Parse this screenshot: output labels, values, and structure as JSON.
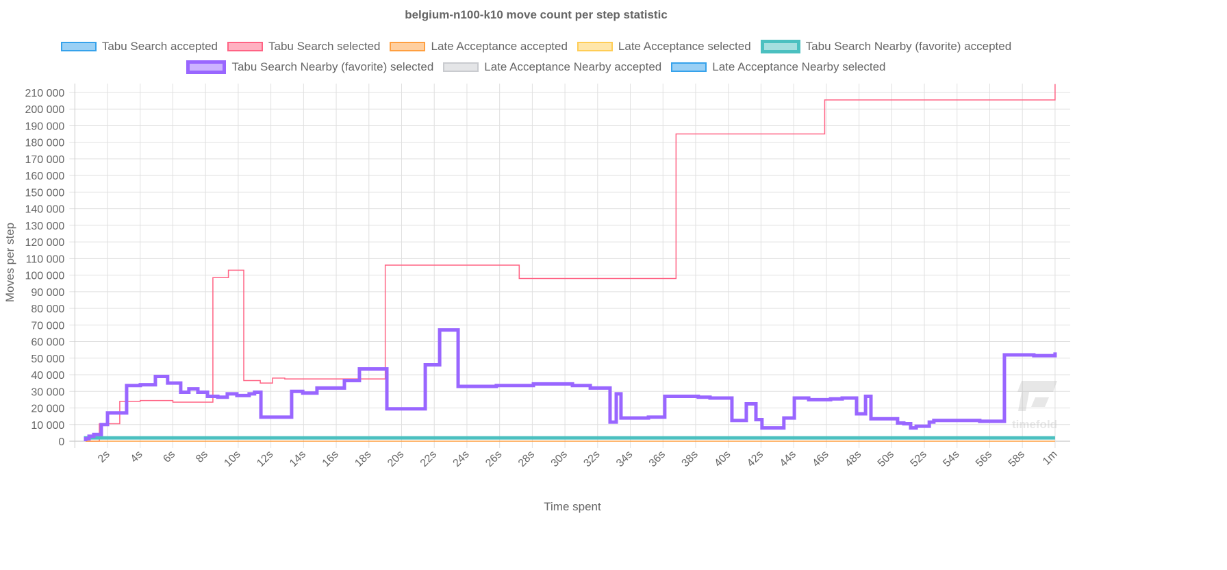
{
  "chart_data": {
    "type": "line",
    "title": "belgium-n100-k10 move count per step statistic",
    "xlabel": "Time spent",
    "ylabel": "Moves per step",
    "xlim": [
      0,
      61
    ],
    "ylim": [
      0,
      215000
    ],
    "stepped": true,
    "grid": true,
    "legend_position": "top",
    "x_ticks": [
      {
        "value": 2,
        "label": "2s"
      },
      {
        "value": 4,
        "label": "4s"
      },
      {
        "value": 6,
        "label": "6s"
      },
      {
        "value": 8,
        "label": "8s"
      },
      {
        "value": 10,
        "label": "10s"
      },
      {
        "value": 12,
        "label": "12s"
      },
      {
        "value": 14,
        "label": "14s"
      },
      {
        "value": 16,
        "label": "16s"
      },
      {
        "value": 18,
        "label": "18s"
      },
      {
        "value": 20,
        "label": "20s"
      },
      {
        "value": 22,
        "label": "22s"
      },
      {
        "value": 24,
        "label": "24s"
      },
      {
        "value": 26,
        "label": "26s"
      },
      {
        "value": 28,
        "label": "28s"
      },
      {
        "value": 30,
        "label": "30s"
      },
      {
        "value": 32,
        "label": "32s"
      },
      {
        "value": 34,
        "label": "34s"
      },
      {
        "value": 36,
        "label": "36s"
      },
      {
        "value": 38,
        "label": "38s"
      },
      {
        "value": 40,
        "label": "40s"
      },
      {
        "value": 42,
        "label": "42s"
      },
      {
        "value": 44,
        "label": "44s"
      },
      {
        "value": 46,
        "label": "46s"
      },
      {
        "value": 48,
        "label": "48s"
      },
      {
        "value": 50,
        "label": "50s"
      },
      {
        "value": 52,
        "label": "52s"
      },
      {
        "value": 54,
        "label": "54s"
      },
      {
        "value": 56,
        "label": "56s"
      },
      {
        "value": 58,
        "label": "58s"
      },
      {
        "value": 60,
        "label": "1m"
      }
    ],
    "y_ticks": [
      {
        "value": 0,
        "label": "0"
      },
      {
        "value": 10000,
        "label": "10 000"
      },
      {
        "value": 20000,
        "label": "20 000"
      },
      {
        "value": 30000,
        "label": "30 000"
      },
      {
        "value": 40000,
        "label": "40 000"
      },
      {
        "value": 50000,
        "label": "50 000"
      },
      {
        "value": 60000,
        "label": "60 000"
      },
      {
        "value": 70000,
        "label": "70 000"
      },
      {
        "value": 80000,
        "label": "80 000"
      },
      {
        "value": 90000,
        "label": "90 000"
      },
      {
        "value": 100000,
        "label": "100 000"
      },
      {
        "value": 110000,
        "label": "110 000"
      },
      {
        "value": 120000,
        "label": "120 000"
      },
      {
        "value": 130000,
        "label": "130 000"
      },
      {
        "value": 140000,
        "label": "140 000"
      },
      {
        "value": 150000,
        "label": "150 000"
      },
      {
        "value": 160000,
        "label": "160 000"
      },
      {
        "value": 170000,
        "label": "170 000"
      },
      {
        "value": 180000,
        "label": "180 000"
      },
      {
        "value": 190000,
        "label": "190 000"
      },
      {
        "value": 200000,
        "label": "200 000"
      },
      {
        "value": 210000,
        "label": "210 000"
      }
    ],
    "series": [
      {
        "name": "Tabu Search accepted",
        "color": "#36a2eb",
        "fill": "#9ad0f5",
        "favorite": false,
        "points": []
      },
      {
        "name": "Tabu Search selected",
        "color": "#ff6384",
        "fill": "#ffb1c1",
        "favorite": false,
        "points": [
          [
            0.66,
            0
          ],
          [
            1.5,
            10500
          ],
          [
            2.75,
            24000
          ],
          [
            4.0,
            24500
          ],
          [
            6.0,
            23500
          ],
          [
            8.45,
            98500
          ],
          [
            9.4,
            103000
          ],
          [
            10.34,
            36500
          ],
          [
            11.35,
            35000
          ],
          [
            12.1,
            38000
          ],
          [
            12.85,
            37500
          ],
          [
            19.0,
            106000
          ],
          [
            27.2,
            98000
          ],
          [
            36.8,
            185000
          ],
          [
            45.9,
            205500
          ],
          [
            60,
            215000
          ]
        ]
      },
      {
        "name": "Late Acceptance accepted",
        "color": "#ff9f40",
        "fill": "#ffcf9f",
        "favorite": false,
        "points": [
          [
            0.66,
            0
          ],
          [
            60,
            0
          ]
        ]
      },
      {
        "name": "Late Acceptance selected",
        "color": "#ffcd56",
        "fill": "#ffe6aa",
        "favorite": false,
        "points": []
      },
      {
        "name": "Tabu Search Nearby (favorite) accepted",
        "color": "#4bc0c0",
        "fill": "#a5dfdf",
        "favorite": true,
        "points": [
          [
            0.66,
            2000
          ],
          [
            60,
            2000
          ]
        ]
      },
      {
        "name": "Tabu Search Nearby (favorite) selected",
        "color": "#9966ff",
        "fill": "#ccb2ff",
        "favorite": true,
        "points": [
          [
            0.66,
            1500
          ],
          [
            0.87,
            3000
          ],
          [
            1.16,
            4000
          ],
          [
            1.62,
            10000
          ],
          [
            2.0,
            17000
          ],
          [
            3.17,
            33500
          ],
          [
            4.01,
            34000
          ],
          [
            4.93,
            39000
          ],
          [
            5.68,
            35000
          ],
          [
            6.48,
            29500
          ],
          [
            6.98,
            31500
          ],
          [
            7.53,
            29500
          ],
          [
            8.12,
            27000
          ],
          [
            8.75,
            26500
          ],
          [
            9.33,
            28500
          ],
          [
            9.92,
            27500
          ],
          [
            10.67,
            28500
          ],
          [
            11.0,
            29500
          ],
          [
            11.39,
            14500
          ],
          [
            13.27,
            30000
          ],
          [
            13.95,
            29000
          ],
          [
            14.82,
            32000
          ],
          [
            16.5,
            36500
          ],
          [
            17.42,
            43500
          ],
          [
            19.1,
            19500
          ],
          [
            21.45,
            46000
          ],
          [
            22.33,
            67000
          ],
          [
            23.46,
            33000
          ],
          [
            25.8,
            33500
          ],
          [
            28.07,
            34500
          ],
          [
            30.46,
            33500
          ],
          [
            31.55,
            32000
          ],
          [
            32.76,
            11500
          ],
          [
            33.14,
            28500
          ],
          [
            33.43,
            14000
          ],
          [
            35.11,
            14500
          ],
          [
            36.11,
            27000
          ],
          [
            38.16,
            26500
          ],
          [
            38.88,
            26000
          ],
          [
            40.22,
            12500
          ],
          [
            41.1,
            22500
          ],
          [
            41.69,
            13000
          ],
          [
            42.06,
            8000
          ],
          [
            43.4,
            14000
          ],
          [
            44.04,
            26000
          ],
          [
            44.92,
            25000
          ],
          [
            46.26,
            25500
          ],
          [
            46.97,
            26000
          ],
          [
            47.85,
            16500
          ],
          [
            48.4,
            27000
          ],
          [
            48.73,
            13500
          ],
          [
            50.36,
            11000
          ],
          [
            50.74,
            10500
          ],
          [
            51.16,
            8000
          ],
          [
            51.5,
            9000
          ],
          [
            52.3,
            11500
          ],
          [
            52.58,
            12500
          ],
          [
            55.39,
            12000
          ],
          [
            56.9,
            52000
          ],
          [
            58.7,
            51500
          ],
          [
            60,
            53500
          ]
        ]
      },
      {
        "name": "Late Acceptance Nearby accepted",
        "color": "#c9cbcf",
        "fill": "#e4e5e7",
        "favorite": false,
        "points": []
      },
      {
        "name": "Late Acceptance Nearby selected",
        "color": "#36a2eb",
        "fill": "#9ad0f5",
        "favorite": false,
        "points": []
      }
    ]
  },
  "watermark": "timefold"
}
